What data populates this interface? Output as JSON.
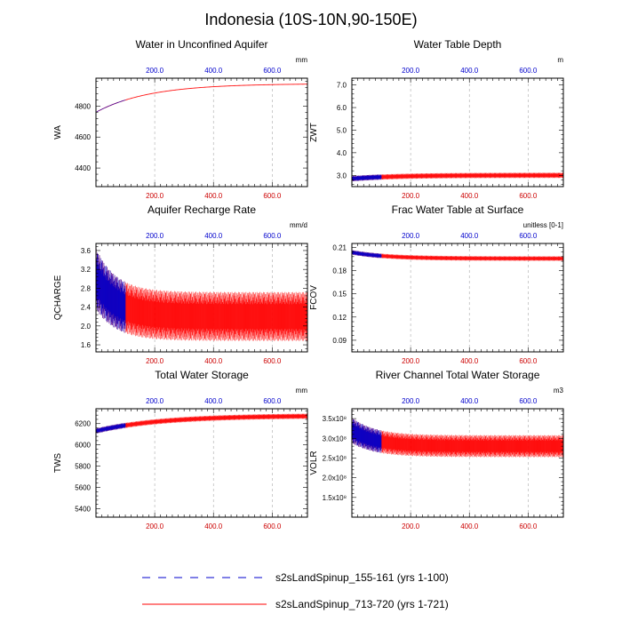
{
  "figure_title": "Indonesia (10S-10N,90-150E)",
  "legend": [
    {
      "label": "s2sLandSpinup_155-161 (yrs 1-100)",
      "color": "#0000cc",
      "style": "dashed"
    },
    {
      "label": "s2sLandSpinup_713-720 (yrs 1-721)",
      "color": "#ff0000",
      "style": "solid"
    }
  ],
  "colors": {
    "blue": "#0000cc",
    "red": "#ff0000",
    "grid": "#aaaaaa"
  },
  "chart_data": [
    {
      "id": "wa",
      "type": "line",
      "title": "Water in Unconfined Aquifer",
      "units": "mm",
      "ylabel": "WA",
      "xlabel": "",
      "xlim": [
        0,
        720
      ],
      "ylim": [
        4280,
        4980
      ],
      "xticks": [
        200,
        400,
        600
      ],
      "xtick_labels": [
        "200.0",
        "400.0",
        "600.0"
      ],
      "yticks": [
        4400,
        4600,
        4800
      ],
      "ytick_labels": [
        "4400",
        "4600",
        "4800"
      ],
      "grid": true,
      "blue": {
        "x_end": 100,
        "y_start": 4760,
        "y_plateau": 4945,
        "tau": 180,
        "amp": 2,
        "amp_decay": 1
      },
      "red": {
        "x_end": 720,
        "y_start": 4760,
        "y_plateau": 4945,
        "tau": 180,
        "amp": 3,
        "amp_decay": 1
      }
    },
    {
      "id": "zwt",
      "type": "line",
      "title": "Water Table Depth",
      "units": "m",
      "ylabel": "ZWT",
      "xlabel": "",
      "xlim": [
        0,
        720
      ],
      "ylim": [
        2.5,
        7.3
      ],
      "xticks": [
        200,
        400,
        600
      ],
      "xtick_labels": [
        "200.0",
        "400.0",
        "600.0"
      ],
      "yticks": [
        3.0,
        4.0,
        5.0,
        6.0,
        7.0
      ],
      "ytick_labels": [
        "3.0",
        "4.0",
        "5.0",
        "6.0",
        "7.0"
      ],
      "grid": true,
      "blue": {
        "x_end": 100,
        "y_start": 2.85,
        "y_plateau": 3.0,
        "tau": 150,
        "amp": 0.12,
        "amp_decay": 1
      },
      "red": {
        "x_end": 720,
        "y_start": 2.85,
        "y_plateau": 3.0,
        "tau": 150,
        "amp": 0.12,
        "amp_decay": 1
      }
    },
    {
      "id": "qcharge",
      "type": "line",
      "title": "Aquifer Recharge Rate",
      "units": "mm/d",
      "ylabel": "QCHARGE",
      "xlabel": "",
      "xlim": [
        0,
        720
      ],
      "ylim": [
        1.45,
        3.75
      ],
      "xticks": [
        200,
        400,
        600
      ],
      "xtick_labels": [
        "200.0",
        "400.0",
        "600.0"
      ],
      "yticks": [
        1.6,
        2.0,
        2.4,
        2.8,
        3.2,
        3.6
      ],
      "ytick_labels": [
        "1.6",
        "2.0",
        "2.4",
        "2.8",
        "3.2",
        "3.6"
      ],
      "grid": true,
      "blue": {
        "x_end": 100,
        "y_start": 3.0,
        "y_plateau": 2.2,
        "tau": 70,
        "amp": 0.65,
        "amp_decay": 0.8
      },
      "red": {
        "x_end": 720,
        "y_start": 3.0,
        "y_plateau": 2.2,
        "tau": 70,
        "amp": 0.65,
        "amp_decay": 0.8
      }
    },
    {
      "id": "fcov",
      "type": "line",
      "title": "Frac Water Table at Surface",
      "units": "unitless [0-1]",
      "ylabel": "FCOV",
      "xlabel": "",
      "xlim": [
        0,
        720
      ],
      "ylim": [
        0.075,
        0.215
      ],
      "xticks": [
        200,
        400,
        600
      ],
      "xtick_labels": [
        "200.0",
        "400.0",
        "600.0"
      ],
      "yticks": [
        0.09,
        0.12,
        0.15,
        0.18,
        0.21
      ],
      "ytick_labels": [
        "0.09",
        "0.12",
        "0.15",
        "0.18",
        "0.21"
      ],
      "grid": true,
      "blue": {
        "x_end": 100,
        "y_start": 0.2035,
        "y_plateau": 0.1955,
        "tau": 120,
        "amp": 0.003,
        "amp_decay": 1
      },
      "red": {
        "x_end": 720,
        "y_start": 0.2035,
        "y_plateau": 0.1955,
        "tau": 120,
        "amp": 0.003,
        "amp_decay": 1
      }
    },
    {
      "id": "tws",
      "type": "line",
      "title": "Total Water Storage",
      "units": "mm",
      "ylabel": "TWS",
      "xlabel": "",
      "xlim": [
        0,
        720
      ],
      "ylim": [
        5320,
        6340
      ],
      "xticks": [
        200,
        400,
        600
      ],
      "xtick_labels": [
        "200.0",
        "400.0",
        "600.0"
      ],
      "yticks": [
        5400,
        5600,
        5800,
        6000,
        6200
      ],
      "ytick_labels": [
        "5400",
        "5600",
        "5800",
        "6000",
        "6200"
      ],
      "grid": true,
      "blue": {
        "x_end": 100,
        "y_start": 6130,
        "y_plateau": 6275,
        "tau": 220,
        "amp": 25,
        "amp_decay": 1
      },
      "red": {
        "x_end": 720,
        "y_start": 6130,
        "y_plateau": 6275,
        "tau": 220,
        "amp": 25,
        "amp_decay": 1
      }
    },
    {
      "id": "volr",
      "type": "line",
      "title": "River Channel Total Water Storage",
      "units": "m3",
      "ylabel": "VOLR",
      "xlabel": "",
      "xlim": [
        0,
        720
      ],
      "ylim": [
        1.0,
        3.75
      ],
      "xticks": [
        200,
        400,
        600
      ],
      "xtick_labels": [
        "200.0",
        "400.0",
        "600.0"
      ],
      "yticks": [
        1.5,
        2.0,
        2.5,
        3.0,
        3.5
      ],
      "ytick_labels": [
        "1.5x10⁸",
        "2.0x10⁸",
        "2.5x10⁸",
        "3.0x10⁸",
        "3.5x10⁸"
      ],
      "grid": true,
      "blue": {
        "x_end": 100,
        "y_start": 3.2,
        "y_plateau": 2.8,
        "tau": 80,
        "amp": 0.33,
        "amp_decay": 0.85
      },
      "red": {
        "x_end": 720,
        "y_start": 3.2,
        "y_plateau": 2.8,
        "tau": 80,
        "amp": 0.33,
        "amp_decay": 0.85
      }
    }
  ]
}
